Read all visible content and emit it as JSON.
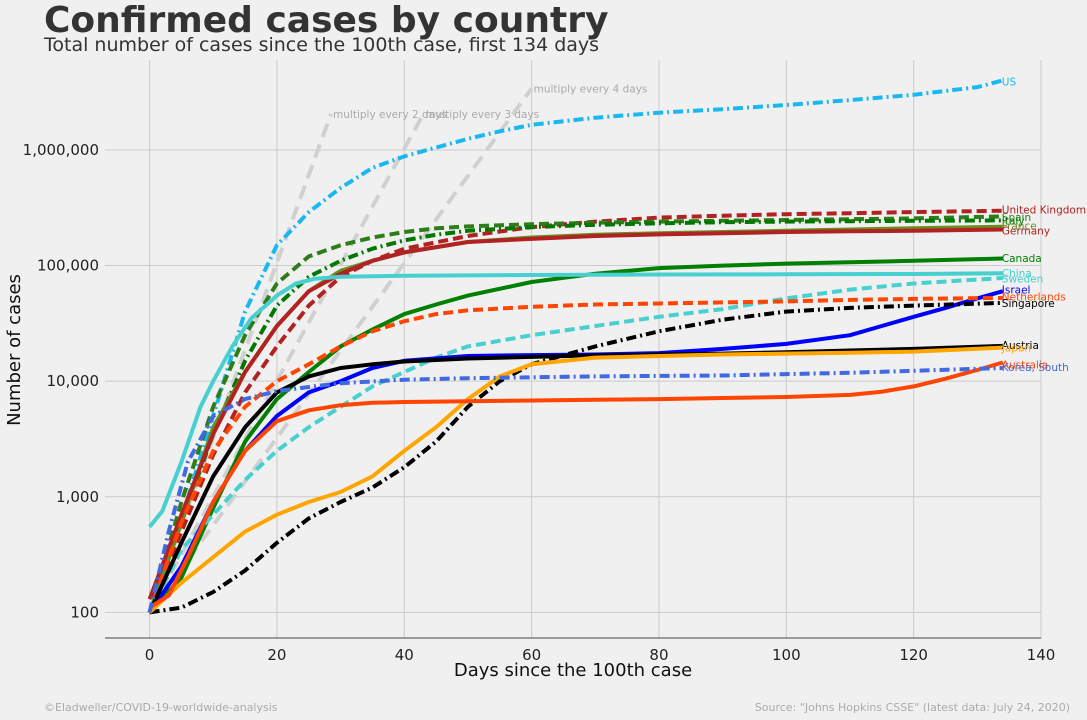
{
  "header": {
    "title": "Confirmed cases by country",
    "subtitle": "Total number of cases since the 100th case, first 134 days"
  },
  "footer": {
    "left": "©Eladweller/COVID-19-worldwide-analysis",
    "right": "Source: \"Johns Hopkins CSSE\" (latest data: July 24, 2020)"
  },
  "chart_data": {
    "type": "line",
    "title": "Confirmed cases by country",
    "subtitle": "Total number of cases since the 100th case, first 134 days",
    "xlabel": "Days since the 100th case",
    "ylabel": "Number of cases",
    "x_scale": "linear",
    "y_scale": "log",
    "xlim": [
      -7,
      140
    ],
    "ylim": [
      60,
      6000000
    ],
    "x_ticks": [
      0,
      20,
      40,
      60,
      80,
      100,
      120,
      140
    ],
    "x_tick_labels": [
      "0",
      "20",
      "40",
      "60",
      "80",
      "100",
      "120",
      "140"
    ],
    "y_ticks": [
      100,
      1000,
      10000,
      100000,
      1000000
    ],
    "y_tick_labels": [
      "100",
      "1,000",
      "10,000",
      "100,000",
      "1,000,000"
    ],
    "grid": true,
    "legend": "line-end labels",
    "reference_lines": [
      {
        "name": "multiply every 2 days",
        "color": "#d0d0d0",
        "x": [
          0,
          28.5
        ],
        "y": [
          100,
          2050000
        ]
      },
      {
        "name": "multiply every 3 days",
        "color": "#d0d0d0",
        "x": [
          0,
          43
        ],
        "y": [
          100,
          2050000
        ]
      },
      {
        "name": "multiply every 4 days",
        "color": "#d0d0d0",
        "x": [
          0,
          60
        ],
        "y": [
          100,
          3400000
        ]
      }
    ],
    "series": [
      {
        "name": "US",
        "color": "#1ab8f0",
        "dash": "dashdot",
        "label_y": 3900000,
        "x": [
          0,
          5,
          10,
          15,
          20,
          25,
          30,
          35,
          40,
          45,
          50,
          55,
          60,
          70,
          80,
          90,
          100,
          110,
          120,
          130,
          134
        ],
        "y": [
          100,
          650,
          5000,
          40000,
          150000,
          290000,
          470000,
          700000,
          880000,
          1050000,
          1250000,
          1450000,
          1650000,
          1900000,
          2100000,
          2250000,
          2450000,
          2700000,
          3000000,
          3500000,
          4000000
        ]
      },
      {
        "name": "United Kingdom",
        "color": "#b22222",
        "dash": "dashed",
        "label_y": 305000,
        "x": [
          0,
          5,
          10,
          15,
          20,
          25,
          30,
          35,
          40,
          50,
          60,
          70,
          80,
          90,
          100,
          110,
          120,
          134
        ],
        "y": [
          100,
          500,
          2300,
          8000,
          20000,
          45000,
          80000,
          110000,
          140000,
          180000,
          215000,
          240000,
          260000,
          270000,
          278000,
          284000,
          290000,
          298000
        ]
      },
      {
        "name": "Spain",
        "color": "#2e7d1a",
        "dash": "dashed",
        "label_y": 264000,
        "x": [
          0,
          5,
          10,
          15,
          20,
          25,
          30,
          35,
          40,
          45,
          50,
          60,
          70,
          80,
          90,
          100,
          110,
          120,
          134
        ],
        "y": [
          100,
          900,
          6000,
          25000,
          70000,
          120000,
          150000,
          175000,
          195000,
          210000,
          218000,
          228000,
          235000,
          240000,
          244000,
          248000,
          252000,
          256000,
          266000
        ]
      },
      {
        "name": "Italy",
        "color": "#007800",
        "dash": "dashdot",
        "label_y": 245000,
        "x": [
          0,
          5,
          10,
          15,
          20,
          25,
          30,
          35,
          40,
          45,
          50,
          60,
          70,
          80,
          90,
          100,
          110,
          120,
          134
        ],
        "y": [
          100,
          600,
          3500,
          15000,
          45000,
          80000,
          110000,
          140000,
          165000,
          185000,
          200000,
          215000,
          225000,
          232000,
          237000,
          240000,
          242000,
          244000,
          246000
        ]
      },
      {
        "name": "France",
        "color": "#6b8e23",
        "dash": "solid",
        "label_y": 221000,
        "x": [
          0,
          5,
          10,
          15,
          20,
          25,
          30,
          35,
          40,
          50,
          60,
          70,
          80,
          90,
          100,
          110,
          120,
          134
        ],
        "y": [
          100,
          600,
          4000,
          12000,
          30000,
          60000,
          90000,
          110000,
          130000,
          160000,
          175000,
          185000,
          190000,
          195000,
          200000,
          205000,
          210000,
          217000
        ]
      },
      {
        "name": "Germany",
        "color": "#b22222",
        "dash": "solid",
        "label_y": 202000,
        "x": [
          0,
          5,
          10,
          15,
          20,
          25,
          30,
          35,
          40,
          50,
          60,
          70,
          80,
          90,
          100,
          110,
          120,
          134
        ],
        "y": [
          130,
          700,
          3500,
          12000,
          30000,
          60000,
          85000,
          110000,
          130000,
          160000,
          170000,
          180000,
          186000,
          190000,
          195000,
          198000,
          200000,
          205000
        ]
      },
      {
        "name": "Canada",
        "color": "#008000",
        "dash": "solid",
        "label_y": 116000,
        "x": [
          0,
          5,
          10,
          15,
          20,
          25,
          30,
          35,
          40,
          45,
          50,
          60,
          70,
          80,
          90,
          100,
          110,
          120,
          134
        ],
        "y": [
          100,
          200,
          800,
          3000,
          7000,
          12000,
          20000,
          28000,
          38000,
          46000,
          55000,
          72000,
          85000,
          95000,
          100000,
          104000,
          107000,
          110000,
          115000
        ]
      },
      {
        "name": "China",
        "color": "#48cfcf",
        "dash": "solid",
        "label_y": 86000,
        "x": [
          0,
          2,
          5,
          8,
          10,
          13,
          16,
          20,
          23,
          26,
          30,
          40,
          60,
          80,
          100,
          120,
          134
        ],
        "y": [
          550,
          750,
          2000,
          6000,
          10000,
          20000,
          35000,
          55000,
          70000,
          77000,
          80000,
          81500,
          82800,
          83700,
          84000,
          84600,
          85900
        ]
      },
      {
        "name": "Sweden",
        "color": "#48cfcf",
        "dash": "dashed",
        "label_y": 77000,
        "x": [
          0,
          5,
          10,
          15,
          20,
          25,
          30,
          35,
          40,
          45,
          50,
          60,
          70,
          80,
          90,
          100,
          110,
          120,
          134
        ],
        "y": [
          100,
          350,
          700,
          1400,
          2500,
          4000,
          6000,
          9000,
          12000,
          16000,
          20000,
          25000,
          30000,
          36000,
          42000,
          52000,
          62000,
          70000,
          78000
        ]
      },
      {
        "name": "Israel",
        "color": "#0000ff",
        "dash": "solid",
        "label_y": 62000,
        "x": [
          0,
          5,
          10,
          15,
          20,
          25,
          30,
          35,
          40,
          50,
          60,
          70,
          80,
          90,
          100,
          110,
          115,
          120,
          125,
          130,
          134
        ],
        "y": [
          100,
          250,
          900,
          2500,
          5000,
          8000,
          10000,
          13000,
          15000,
          16500,
          16800,
          17000,
          17500,
          19000,
          21000,
          25000,
          30000,
          36000,
          43000,
          52000,
          60000
        ]
      },
      {
        "name": "Netherlands",
        "color": "#ff4500",
        "dash": "dashed",
        "label_y": 54000,
        "x": [
          0,
          5,
          10,
          15,
          20,
          25,
          30,
          35,
          40,
          45,
          50,
          60,
          70,
          80,
          90,
          100,
          110,
          120,
          134
        ],
        "y": [
          100,
          600,
          2500,
          6000,
          10000,
          14000,
          20000,
          27000,
          33000,
          38000,
          41000,
          44000,
          46000,
          47000,
          48000,
          49000,
          50500,
          51500,
          52500
        ]
      },
      {
        "name": "Singapore",
        "color": "#000000",
        "dash": "dashdot",
        "label_y": 47500,
        "x": [
          0,
          5,
          10,
          15,
          20,
          25,
          30,
          35,
          40,
          45,
          50,
          55,
          60,
          70,
          80,
          90,
          100,
          110,
          120,
          134
        ],
        "y": [
          100,
          110,
          150,
          230,
          400,
          650,
          900,
          1200,
          1800,
          3000,
          6000,
          10000,
          14000,
          20000,
          27000,
          34000,
          40000,
          43000,
          45000,
          47500
        ]
      },
      {
        "name": "Austria",
        "color": "#000000",
        "dash": "solid",
        "label_y": 20500,
        "x": [
          0,
          5,
          10,
          15,
          20,
          25,
          30,
          35,
          40,
          50,
          60,
          70,
          80,
          90,
          100,
          110,
          120,
          134
        ],
        "y": [
          100,
          400,
          1500,
          4000,
          8000,
          11000,
          13000,
          14000,
          14800,
          15700,
          16200,
          16700,
          17000,
          17300,
          17800,
          18400,
          19000,
          20200
        ]
      },
      {
        "name": "Japan",
        "color": "#ffa500",
        "dash": "solid",
        "label_y": 19500,
        "x": [
          0,
          5,
          10,
          15,
          20,
          25,
          30,
          35,
          40,
          45,
          50,
          55,
          60,
          70,
          80,
          90,
          100,
          110,
          120,
          134
        ],
        "y": [
          100,
          180,
          300,
          500,
          700,
          900,
          1100,
          1500,
          2500,
          4000,
          7000,
          11000,
          14000,
          16000,
          16500,
          17000,
          17300,
          17600,
          18000,
          19500
        ]
      },
      {
        "name": "Australia",
        "color": "#ff4500",
        "dash": "solid",
        "label_y": 14000,
        "x": [
          0,
          3,
          6,
          10,
          15,
          20,
          25,
          30,
          35,
          40,
          50,
          60,
          70,
          80,
          90,
          100,
          110,
          115,
          120,
          125,
          130,
          134
        ],
        "y": [
          110,
          140,
          300,
          900,
          2500,
          4500,
          5600,
          6200,
          6500,
          6600,
          6700,
          6800,
          6900,
          7000,
          7150,
          7300,
          7600,
          8100,
          9000,
          10500,
          12500,
          14500
        ]
      },
      {
        "name": "Korea, South",
        "color": "#4169e1",
        "dash": "dashdot",
        "label_y": 13200,
        "x": [
          0,
          3,
          6,
          10,
          15,
          20,
          25,
          30,
          40,
          50,
          60,
          70,
          80,
          90,
          100,
          110,
          120,
          134
        ],
        "y": [
          100,
          500,
          2000,
          5000,
          7000,
          8200,
          8900,
          9600,
          10300,
          10600,
          10800,
          11000,
          11100,
          11200,
          11500,
          11800,
          12300,
          13000
        ]
      }
    ]
  }
}
